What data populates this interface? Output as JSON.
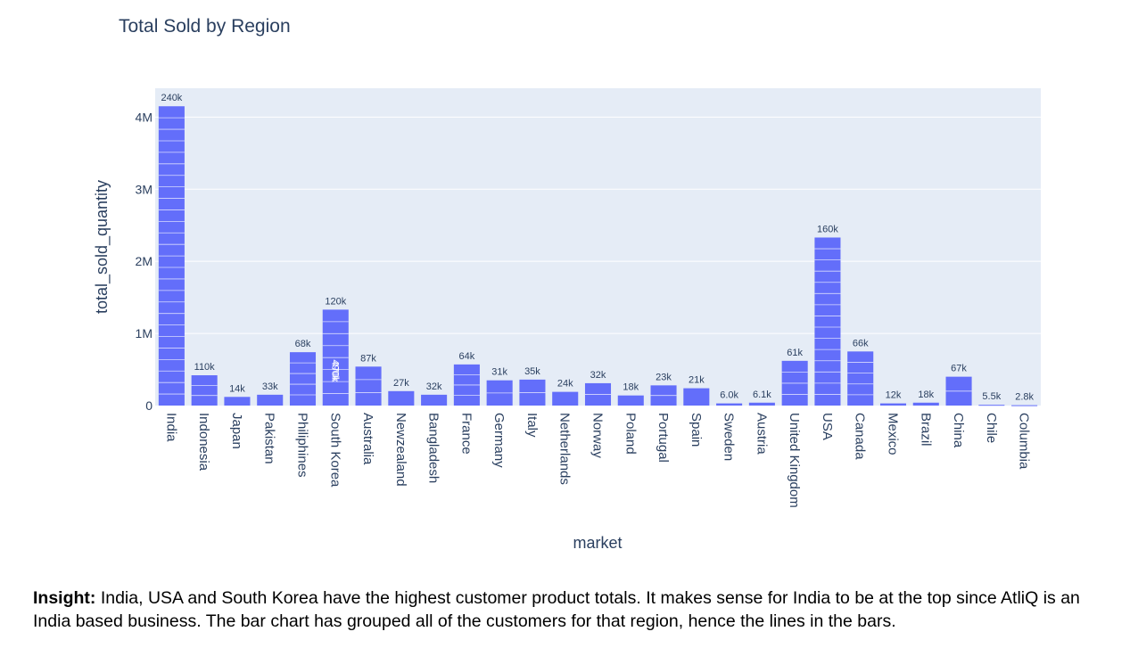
{
  "chart_data": {
    "type": "bar",
    "title": "Total Sold by Region",
    "xlabel": "market",
    "ylabel": "total_sold_quantity",
    "ylim": [
      0,
      4400000
    ],
    "yticks": [
      0,
      1000000,
      2000000,
      3000000,
      4000000
    ],
    "ytick_labels": [
      "0",
      "1M",
      "2M",
      "3M",
      "4M"
    ],
    "grid": true,
    "bar_color": "#636efa",
    "plot_bg": "#e5ecf6",
    "categories": [
      "India",
      "Indonesia",
      "Japan",
      "Pakistan",
      "Philiphines",
      "South Korea",
      "Australia",
      "Newzealand",
      "Bangladesh",
      "France",
      "Germany",
      "Italy",
      "Netherlands",
      "Norway",
      "Poland",
      "Portugal",
      "Spain",
      "Sweden",
      "Austria",
      "United Kingdom",
      "USA",
      "Canada",
      "Mexico",
      "Brazil",
      "China",
      "Chile",
      "Columbia"
    ],
    "values": [
      4150000,
      420000,
      120000,
      150000,
      740000,
      1330000,
      540000,
      200000,
      150000,
      570000,
      350000,
      360000,
      190000,
      310000,
      140000,
      280000,
      240000,
      30000,
      40000,
      620000,
      2330000,
      750000,
      30000,
      40000,
      400000,
      10000,
      5000
    ],
    "top_labels": [
      "240k",
      "110k",
      "14k",
      "33k",
      "68k",
      "120k",
      "87k",
      "27k",
      "32k",
      "64k",
      "31k",
      "35k",
      "24k",
      "32k",
      "18k",
      "23k",
      "21k",
      "6.0k",
      "6.1k",
      "61k",
      "160k",
      "66k",
      "12k",
      "18k",
      "67k",
      "5.5k",
      "2.8k"
    ],
    "inner_labels": [
      {
        "category": "South Korea",
        "value": 470000,
        "label": "470k"
      },
      {
        "category": "South Korea",
        "value": 490000,
        "label": "490k"
      }
    ]
  },
  "insight": {
    "heading": "Insight:",
    "text": " India, USA and South Korea have the highest customer product totals. It makes sense for India to be at the top since AtliQ is an India based business. The bar chart has grouped all of the customers for that region, hence the lines in the bars."
  }
}
